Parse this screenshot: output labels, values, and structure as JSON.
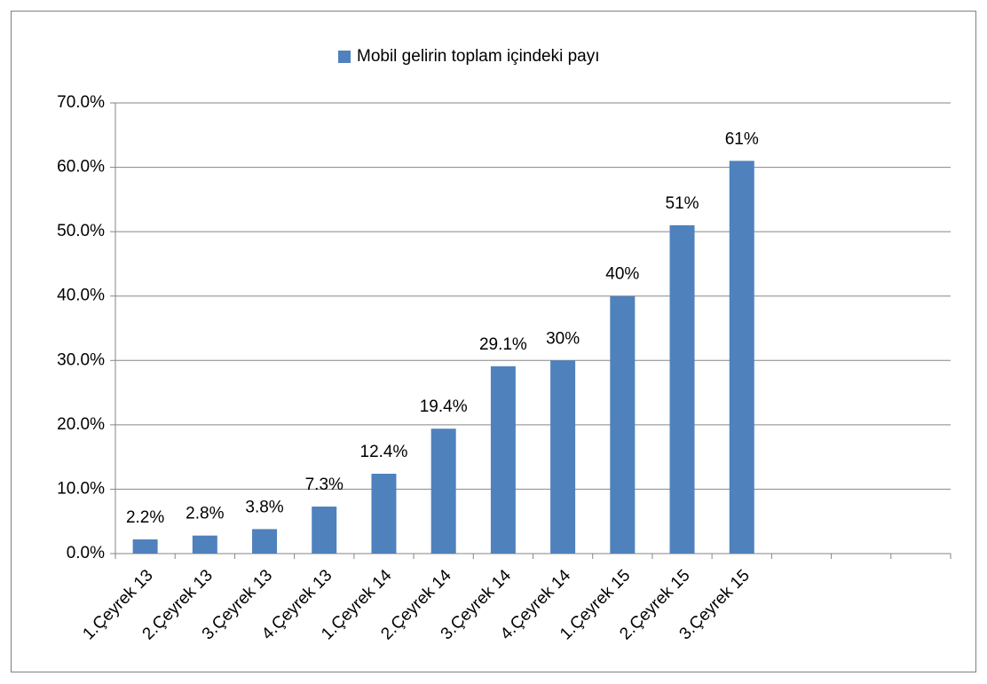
{
  "chart_data": {
    "type": "bar",
    "legend": "Mobil gelirin toplam içindeki payı",
    "categories": [
      "1.Çeyrek 13",
      "2.Çeyrek 13",
      "3.Çeyrek 13",
      "4.Çeyrek 13",
      "1.Çeyrek 14",
      "2.Çeyrek 14",
      "3.Çeyrek 14",
      "4.Çeyrek 14",
      "1.Çeyrek 15",
      "2.Çeyrek 15",
      "3.Çeyrek 15",
      null,
      null,
      null
    ],
    "values": [
      2.2,
      2.8,
      3.8,
      7.3,
      12.4,
      19.4,
      29.1,
      30,
      40,
      51,
      61,
      null,
      null,
      null
    ],
    "value_labels": [
      "2.2%",
      "2.8%",
      "3.8%",
      "7.3%",
      "12.4%",
      "19.4%",
      "29.1%",
      "30%",
      "40%",
      "51%",
      "61%",
      null,
      null,
      null
    ],
    "color": "#4f81bd",
    "ylim": [
      0,
      70
    ],
    "yticks": [
      {
        "value": 0,
        "label": "0.0%"
      },
      {
        "value": 10,
        "label": "10.0%"
      },
      {
        "value": 20,
        "label": "20.0%"
      },
      {
        "value": 30,
        "label": "30.0%"
      },
      {
        "value": 40,
        "label": "40.0%"
      },
      {
        "value": 50,
        "label": "50.0%"
      },
      {
        "value": 60,
        "label": "60.0%"
      },
      {
        "value": 70,
        "label": "70.0%"
      }
    ],
    "grid": true
  }
}
